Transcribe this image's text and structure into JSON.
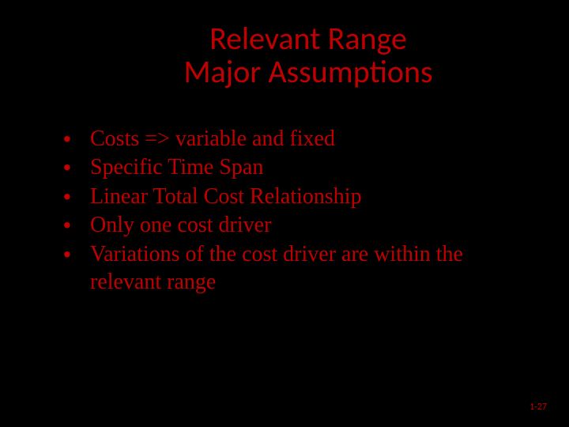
{
  "background_color": "#000000",
  "text_color": "#c00000",
  "title": {
    "line1": "Relevant Range",
    "line2": "Major Assumptions",
    "font_family": "Calibri",
    "font_size_pt": 40
  },
  "bullets": {
    "font_family": "Georgia",
    "font_size_pt": 28,
    "bullet_char": "•",
    "items": [
      "Costs => variable and fixed",
      "Specific Time Span",
      "Linear Total Cost Relationship",
      "Only one cost driver",
      "Variations of the cost driver are within the relevant range"
    ]
  },
  "page_number": "1-27"
}
